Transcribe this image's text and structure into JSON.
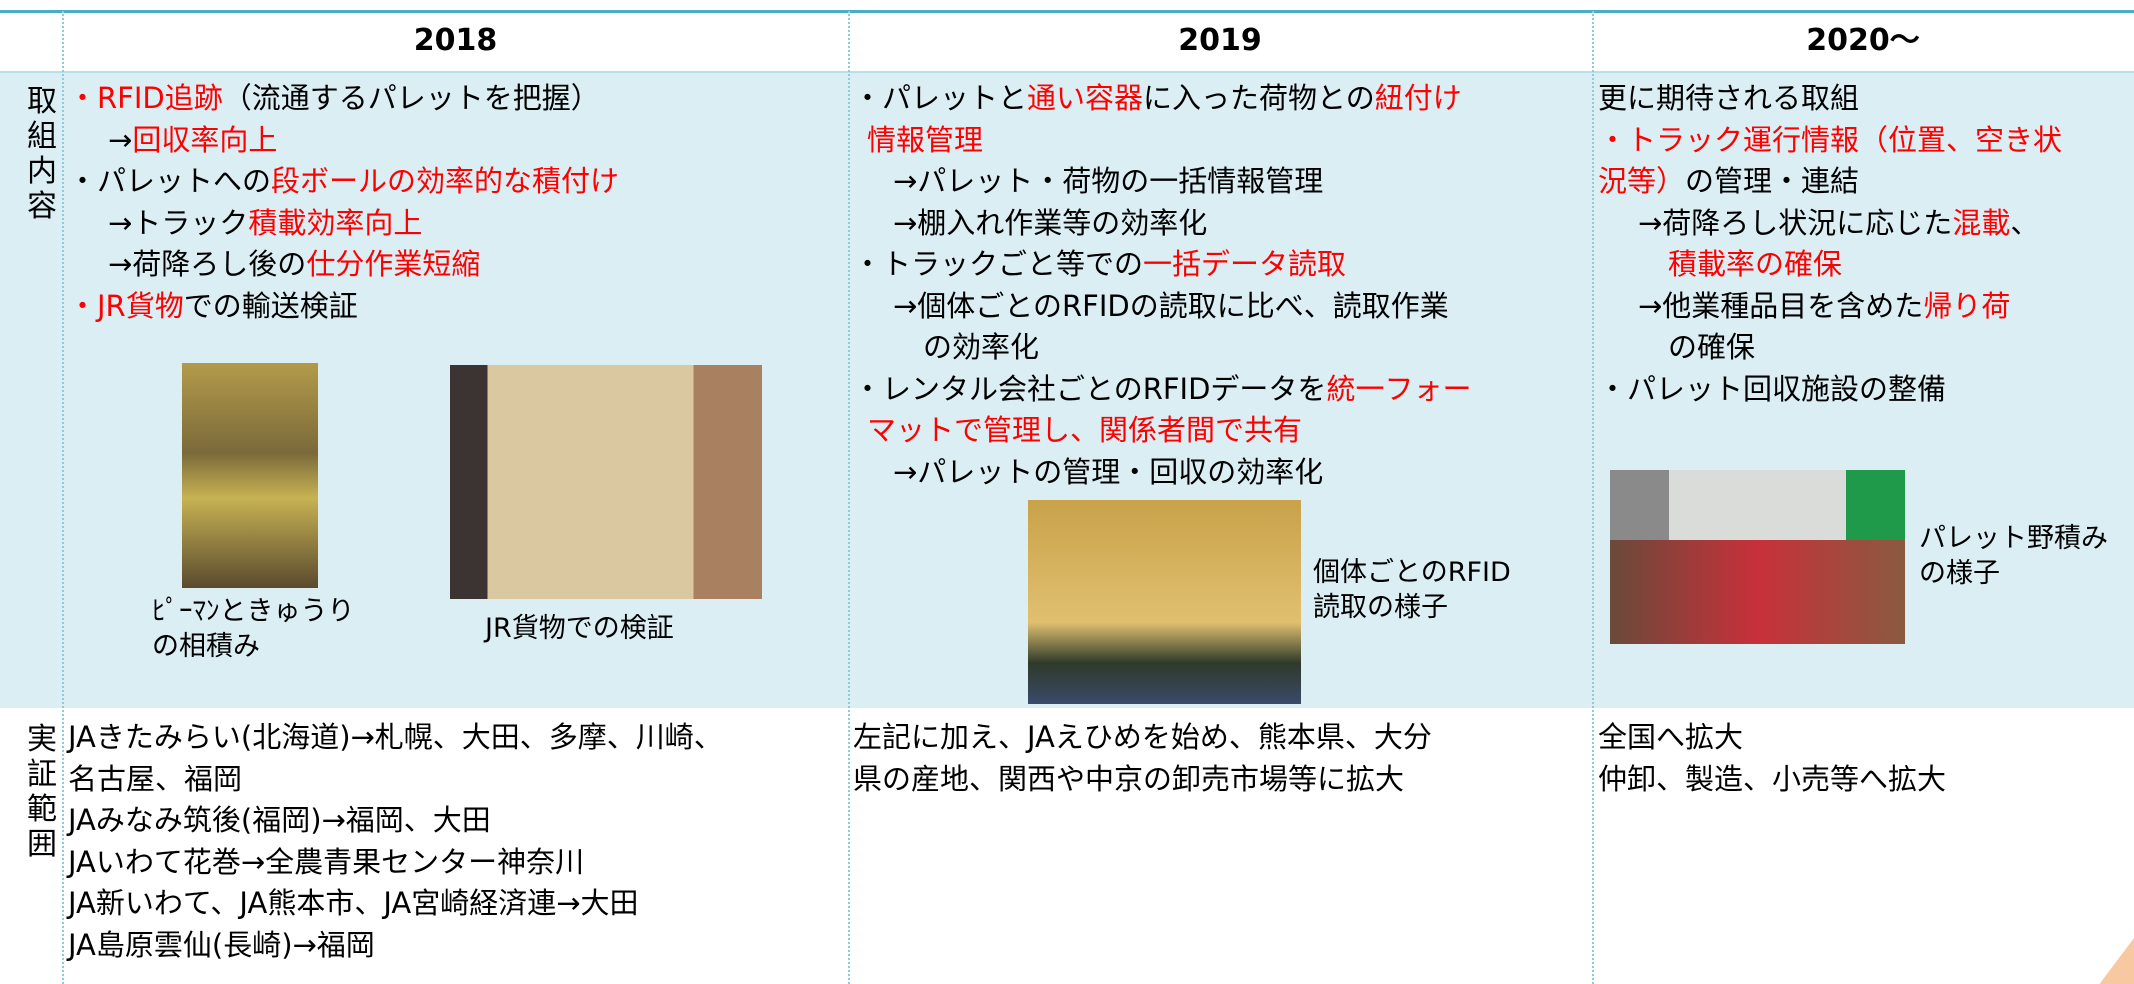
{
  "header": {
    "columns": [
      "2018",
      "2019",
      "2020〜"
    ]
  },
  "rows": [
    {
      "label": "取組内容",
      "cells": [
        {
          "lines": [
            {
              "level": 0,
              "segments": [
                {
                  "text": "・RFID追跡",
                  "color": "#ff0000"
                },
                {
                  "text": "（流通するパレットを把握）"
                }
              ]
            },
            {
              "level": 2,
              "segments": [
                {
                  "text": "→"
                },
                {
                  "text": "回収率向上",
                  "color": "#ff0000"
                }
              ]
            },
            {
              "level": 0,
              "segments": [
                {
                  "text": "・パレットへの"
                },
                {
                  "text": "段ボールの効率的な積付け",
                  "color": "#ff0000"
                }
              ]
            },
            {
              "level": 2,
              "segments": [
                {
                  "text": "→トラック"
                },
                {
                  "text": "積載効率向上",
                  "color": "#ff0000"
                }
              ]
            },
            {
              "level": 2,
              "segments": [
                {
                  "text": "→荷降ろし後の"
                },
                {
                  "text": "仕分作業短縮",
                  "color": "#ff0000"
                }
              ]
            },
            {
              "level": 0,
              "segments": [
                {
                  "text": "・JR貨物",
                  "color": "#ff0000"
                },
                {
                  "text": "での輸送検証"
                }
              ]
            }
          ],
          "photos": [
            {
              "caption": [
                "ﾋﾟｰﾏﾝときゅうり",
                "の相積み"
              ]
            },
            {
              "caption": [
                "JR貨物での検証"
              ]
            }
          ]
        },
        {
          "lines": [
            {
              "level": 0,
              "segments": [
                {
                  "text": "・パレットと"
                },
                {
                  "text": "通い容器",
                  "color": "#ff0000"
                },
                {
                  "text": "に入った荷物との"
                },
                {
                  "text": "紐付け",
                  "color": "#ff0000"
                }
              ]
            },
            {
              "level": 1,
              "segments": [
                {
                  "text": "情報管理",
                  "color": "#ff0000"
                }
              ]
            },
            {
              "level": 2,
              "segments": [
                {
                  "text": "→パレット・荷物の一括情報管理"
                }
              ]
            },
            {
              "level": 2,
              "segments": [
                {
                  "text": "→棚入れ作業等の効率化"
                }
              ]
            },
            {
              "level": 0,
              "segments": [
                {
                  "text": "・トラックごと等での"
                },
                {
                  "text": "一括データ読取",
                  "color": "#ff0000"
                }
              ]
            },
            {
              "level": 2,
              "segments": [
                {
                  "text": "→個体ごとのRFIDの読取に比べ、読取作業"
                }
              ]
            },
            {
              "level": 3,
              "segments": [
                {
                  "text": "の効率化"
                }
              ]
            },
            {
              "level": 0,
              "segments": [
                {
                  "text": "・レンタル会社ごとのRFIDデータを"
                },
                {
                  "text": "統一フォー",
                  "color": "#ff0000"
                }
              ]
            },
            {
              "level": 1,
              "segments": [
                {
                  "text": "マットで管理し、関係者間で共有",
                  "color": "#ff0000"
                }
              ]
            },
            {
              "level": 2,
              "segments": [
                {
                  "text": "→パレットの管理・回収の効率化"
                }
              ]
            }
          ],
          "photos": [
            {
              "caption": [
                "個体ごとのRFID",
                "読取の様子"
              ]
            }
          ]
        },
        {
          "lines": [
            {
              "level": 0,
              "segments": [
                {
                  "text": "更に期待される取組"
                }
              ]
            },
            {
              "level": 0,
              "segments": [
                {
                  "text": "・トラック運行情報（位置、空き状",
                  "color": "#ff0000"
                }
              ]
            },
            {
              "level": 0,
              "segments": [
                {
                  "text": "況等）",
                  "color": "#ff0000"
                },
                {
                  "text": "の管理・連結"
                }
              ]
            },
            {
              "level": 2,
              "segments": [
                {
                  "text": "→荷降ろし状況に応じた"
                },
                {
                  "text": "混載",
                  "color": "#ff0000"
                },
                {
                  "text": "、"
                }
              ]
            },
            {
              "level": 3,
              "segments": [
                {
                  "text": "積載率の確保",
                  "color": "#ff0000"
                }
              ]
            },
            {
              "level": 2,
              "segments": [
                {
                  "text": "→他業種品目を含めた"
                },
                {
                  "text": "帰り荷",
                  "color": "#ff0000"
                }
              ]
            },
            {
              "level": 3,
              "segments": [
                {
                  "text": "の確保"
                }
              ]
            },
            {
              "level": 0,
              "segments": [
                {
                  "text": "・パレット回収施設の整備"
                }
              ]
            }
          ],
          "photos": [
            {
              "caption": [
                "パレット野積み",
                "の様子"
              ]
            }
          ]
        }
      ]
    },
    {
      "label": "実証範囲",
      "cells": [
        {
          "lines": [
            {
              "level": 0,
              "segments": [
                {
                  "text": "JAきたみらい(北海道)→札幌、大田、多摩、川崎、"
                }
              ]
            },
            {
              "level": 0,
              "segments": [
                {
                  "text": "名古屋、福岡"
                }
              ]
            },
            {
              "level": 0,
              "segments": [
                {
                  "text": "JAみなみ筑後(福岡)→福岡、大田"
                }
              ]
            },
            {
              "level": 0,
              "segments": [
                {
                  "text": "JAいわて花巻→全農青果センター神奈川"
                }
              ]
            },
            {
              "level": 0,
              "segments": [
                {
                  "text": "JA新いわて、JA熊本市、JA宮崎経済連→大田"
                }
              ]
            },
            {
              "level": 0,
              "segments": [
                {
                  "text": "JA島原雲仙(長崎)→福岡"
                }
              ]
            }
          ]
        },
        {
          "lines": [
            {
              "level": 0,
              "segments": [
                {
                  "text": "左記に加え、JAえひめを始め、熊本県、大分"
                }
              ]
            },
            {
              "level": 0,
              "segments": [
                {
                  "text": "県の産地、関西や中京の卸売市場等に拡大"
                }
              ]
            }
          ]
        },
        {
          "lines": [
            {
              "level": 0,
              "segments": [
                {
                  "text": "全国へ拡大"
                }
              ]
            },
            {
              "level": 0,
              "segments": [
                {
                  "text": "仲卸、製造、小売等へ拡大"
                }
              ]
            }
          ]
        }
      ]
    }
  ]
}
